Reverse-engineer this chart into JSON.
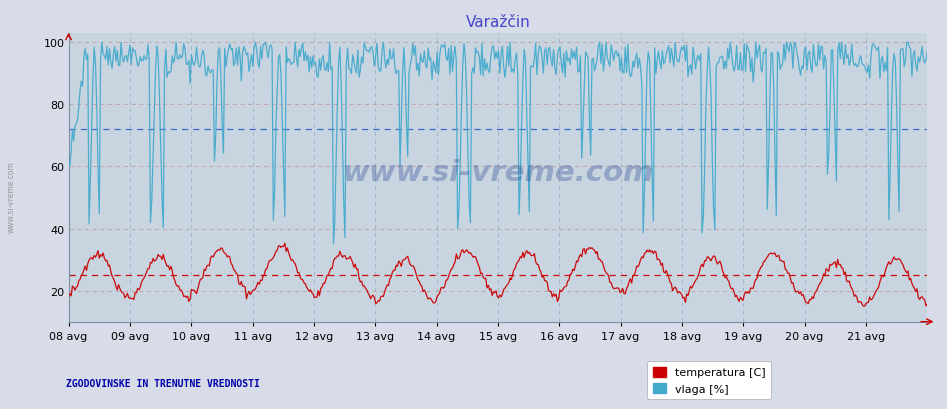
{
  "title": "Varažčin",
  "title_color": "#4444cc",
  "bg_color": "#d8dce8",
  "plot_bg_color": "#c8d4e0",
  "grid_color_h_red": "#c0a0a0",
  "grid_color_v_blue": "#a0b0c8",
  "yticks": [
    20,
    40,
    60,
    80,
    100
  ],
  "ylim": [
    10,
    103
  ],
  "xlim_days": [
    0,
    14
  ],
  "xtick_labels": [
    "08 avg",
    "09 avg",
    "10 avg",
    "11 avg",
    "12 avg",
    "13 avg",
    "14 avg",
    "15 avg",
    "16 avg",
    "17 avg",
    "18 avg",
    "19 avg",
    "20 avg",
    "21 avg"
  ],
  "temp_color": "#cc0000",
  "humidity_color": "#44aacc",
  "temp_mean_line": 25,
  "humidity_mean_line": 72,
  "temp_mean_color": "#cc0000",
  "humidity_mean_color": "#3366cc",
  "footer_text": "ZGODOVINSKE IN TRENUTNE VREDNOSTI",
  "footer_color": "#0000aa",
  "legend_temp": "temperatura [C]",
  "legend_humidity": "vlaga [%]",
  "watermark": "www.si-vreme.com",
  "watermark_color": "#1a3a8a",
  "watermark_alpha": 0.3,
  "left_label": "www.si-vreme.com"
}
